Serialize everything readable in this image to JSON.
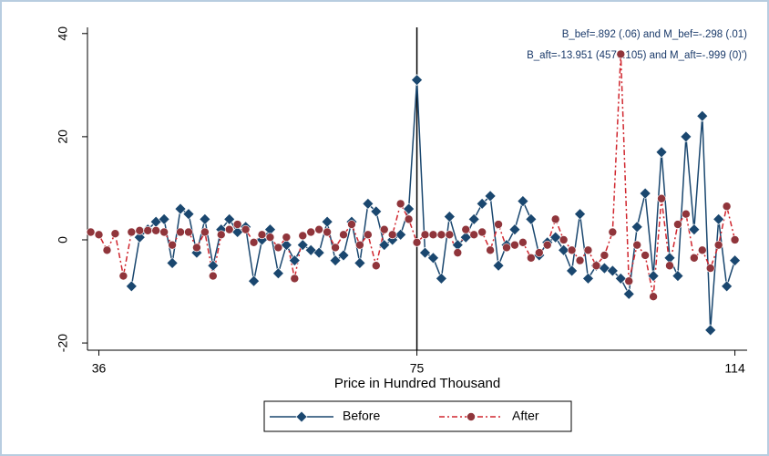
{
  "chart_data": {
    "type": "line",
    "annotations": [
      "B_bef=.892 (.06) and M_bef=-.298 (.01)",
      "B_aft=-13.951 (4570.105) and M_aft=-.999 (0)')"
    ],
    "x_label": "Price in Hundred Thousand",
    "x": [
      35,
      36,
      37,
      38,
      39,
      40,
      41,
      42,
      43,
      44,
      45,
      46,
      47,
      48,
      49,
      50,
      51,
      52,
      53,
      54,
      55,
      56,
      57,
      58,
      59,
      60,
      61,
      62,
      63,
      64,
      65,
      66,
      67,
      68,
      69,
      70,
      71,
      72,
      73,
      74,
      75,
      76,
      77,
      78,
      79,
      80,
      81,
      82,
      83,
      84,
      85,
      86,
      87,
      88,
      89,
      90,
      91,
      92,
      93,
      94,
      95,
      96,
      97,
      98,
      99,
      100,
      101,
      102,
      103,
      104,
      105,
      106,
      107,
      108,
      109,
      110,
      111,
      112,
      113,
      114
    ],
    "series": [
      {
        "name": "Before",
        "color": "#1a476f",
        "marker": "diamond",
        "dash": "solid",
        "values": [
          null,
          null,
          null,
          null,
          null,
          -9,
          0.5,
          2,
          3.5,
          4,
          -4.5,
          6,
          5,
          -2.5,
          4,
          -5,
          2,
          4,
          1.5,
          2.5,
          -8,
          0,
          2,
          -6.5,
          -1,
          -4,
          -1,
          -2,
          -2.5,
          3.5,
          -4,
          -3,
          3.5,
          -4.5,
          7,
          5.5,
          -1,
          0,
          1,
          6,
          31,
          -2.5,
          -3.5,
          -7.5,
          4.5,
          -1,
          0.5,
          4,
          7,
          8.5,
          -5,
          -1,
          2,
          7.5,
          4,
          -3,
          -0.5,
          0.5,
          -2,
          -6,
          5,
          -7.5,
          -5,
          -5.5,
          -6,
          -7.5,
          -10.5,
          2.5,
          9,
          -7,
          17,
          -3.5,
          -7,
          20,
          2,
          24,
          -17.5,
          4,
          -9,
          -4
        ]
      },
      {
        "name": "After",
        "color": "#d0262e",
        "marker": "circle",
        "dash": "dash-dot",
        "values": [
          1.5,
          1,
          -2,
          1.2,
          -7,
          1.5,
          1.8,
          1.8,
          1.8,
          1.5,
          -1,
          1.5,
          1.5,
          -1.5,
          1.5,
          -7,
          1,
          2,
          3,
          2,
          -0.5,
          1,
          0.5,
          -1.5,
          0.5,
          -7.5,
          0.8,
          1.5,
          2,
          1.5,
          -1.5,
          1,
          3,
          -1,
          1,
          -5,
          2,
          1,
          7,
          4,
          -0.5,
          1,
          1,
          1,
          1,
          -2.5,
          2,
          1,
          1.5,
          -2,
          3,
          -1.5,
          -1,
          -0.5,
          -3.5,
          -2.5,
          -1,
          4,
          0,
          -2,
          -4,
          -2,
          -5,
          -3,
          1.5,
          36,
          -8,
          -1,
          -3,
          -11,
          8,
          -5,
          3,
          5,
          -3.5,
          -2,
          -5.5,
          -1,
          6.5,
          0
        ]
      }
    ],
    "xlim": [
      34.6,
      115.5
    ],
    "xticks": [
      36,
      75,
      114
    ],
    "ylim": [
      -21.4,
      41.2
    ],
    "yticks": [
      -20,
      0,
      20,
      40
    ],
    "xline": 75,
    "grid": false
  }
}
